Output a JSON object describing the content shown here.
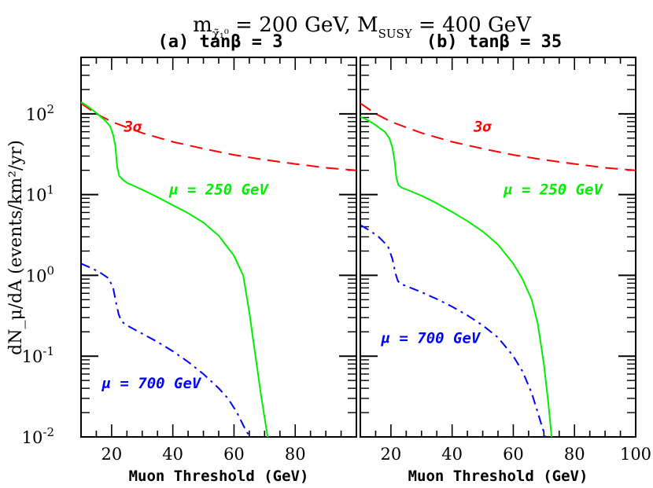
{
  "figure": {
    "title": "m_χ = 200 GeV, M_SUSY = 400 GeV",
    "title_main": "m",
    "title_sub": "χ̃₁⁰",
    "title_mid": " = 200 GeV, M",
    "title_sub2": "SUSY",
    "title_end": " = 400 GeV",
    "ylabel": "dN_μ/dA (events/km²/yr)"
  },
  "chart_data": [
    {
      "type": "line",
      "panel_label": "(a) tanβ = 3",
      "xlabel": "Muon Threshold (GeV)",
      "ylabel": "dN_μ/dA (events/km²/yr)",
      "xlim": [
        10,
        100
      ],
      "ylim": [
        0.01,
        500
      ],
      "yscale": "log",
      "x_ticks": [
        20,
        40,
        60,
        80
      ],
      "y_ticks": [
        "10^-2",
        "10^-1",
        "10^0",
        "10^1",
        "10^2"
      ],
      "series": [
        {
          "name": "3σ",
          "color": "#ff0000",
          "style": "dashed",
          "x": [
            10,
            15,
            20,
            25,
            30,
            40,
            50,
            60,
            70,
            80,
            90,
            100
          ],
          "y": [
            135,
            100,
            80,
            68,
            58,
            45,
            37,
            31,
            27,
            24,
            21.5,
            20
          ]
        },
        {
          "name": "μ = 250 GeV",
          "color": "#00ee00",
          "style": "solid",
          "x": [
            10,
            12,
            14,
            16,
            18,
            19.5,
            20.5,
            21.2,
            21.8,
            22.5,
            23.5,
            25,
            30,
            35,
            40,
            45,
            50,
            55,
            60,
            63,
            65,
            67,
            69,
            71
          ],
          "y": [
            140,
            125,
            110,
            95,
            82,
            70,
            55,
            40,
            22,
            17,
            15.5,
            14,
            11.5,
            9.3,
            7.4,
            5.9,
            4.5,
            3.1,
            1.75,
            1.0,
            0.35,
            0.1,
            0.03,
            0.01
          ]
        },
        {
          "name": "μ = 700 GeV",
          "color": "#0000ff",
          "style": "dash-dot",
          "x": [
            10,
            13,
            16,
            19,
            20.5,
            21.5,
            22.3,
            23.2,
            25,
            30,
            35,
            40,
            45,
            50,
            55,
            58,
            61,
            63,
            64.5,
            65.5
          ],
          "y": [
            1.4,
            1.25,
            1.1,
            0.92,
            0.7,
            0.45,
            0.33,
            0.27,
            0.24,
            0.19,
            0.15,
            0.115,
            0.085,
            0.06,
            0.04,
            0.03,
            0.02,
            0.014,
            0.011,
            0.01
          ]
        }
      ],
      "annotations": [
        {
          "text": "3σ",
          "color": "#ff0000",
          "at": [
            27,
            60
          ]
        },
        {
          "text": "μ = 250 GeV",
          "color": "#00ee00",
          "at": [
            55,
            10
          ]
        },
        {
          "text": "μ = 700 GeV",
          "color": "#0000ff",
          "at": [
            33,
            0.04
          ]
        }
      ]
    },
    {
      "type": "line",
      "panel_label": "(b) tanβ = 35",
      "xlabel": "Muon Threshold (GeV)",
      "ylabel": "",
      "xlim": [
        10,
        100
      ],
      "ylim": [
        0.01,
        500
      ],
      "yscale": "log",
      "x_ticks": [
        20,
        40,
        60,
        80,
        100
      ],
      "series": [
        {
          "name": "3σ",
          "color": "#ff0000",
          "style": "dashed",
          "x": [
            10,
            15,
            20,
            25,
            30,
            40,
            50,
            60,
            70,
            80,
            90,
            100
          ],
          "y": [
            135,
            100,
            80,
            68,
            58,
            45,
            37,
            31,
            27,
            24,
            21.5,
            20
          ]
        },
        {
          "name": "μ = 250 GeV",
          "color": "#00ee00",
          "style": "solid",
          "x": [
            10,
            12,
            14,
            16,
            18,
            19.5,
            20.5,
            21.2,
            21.8,
            22.5,
            23.5,
            25,
            30,
            35,
            40,
            45,
            50,
            55,
            60,
            63,
            66,
            68,
            70,
            71.5,
            72.5
          ],
          "y": [
            92,
            85,
            77,
            68,
            60,
            50,
            38,
            26,
            16,
            13,
            12.2,
            11.6,
            9.7,
            7.8,
            6.1,
            4.7,
            3.5,
            2.4,
            1.4,
            0.9,
            0.5,
            0.25,
            0.08,
            0.025,
            0.01
          ]
        },
        {
          "name": "μ = 700 GeV",
          "color": "#0000ff",
          "style": "dash-dot",
          "x": [
            10,
            13,
            16,
            19,
            20.5,
            21.5,
            22.3,
            23.2,
            25,
            30,
            35,
            40,
            45,
            50,
            55,
            60,
            63,
            66,
            68,
            69.5,
            70.5
          ],
          "y": [
            4.2,
            3.6,
            3.0,
            2.3,
            1.6,
            1.05,
            0.85,
            0.78,
            0.74,
            0.62,
            0.51,
            0.41,
            0.32,
            0.24,
            0.17,
            0.1,
            0.065,
            0.035,
            0.02,
            0.013,
            0.01
          ]
        }
      ],
      "annotations": [
        {
          "text": "3σ",
          "color": "#ff0000",
          "at": [
            50,
            60
          ]
        },
        {
          "text": "μ = 250 GeV",
          "color": "#00ee00",
          "at": [
            73,
            10
          ]
        },
        {
          "text": "μ = 700 GeV",
          "color": "#0000ff",
          "at": [
            33,
            0.145
          ]
        }
      ]
    }
  ]
}
